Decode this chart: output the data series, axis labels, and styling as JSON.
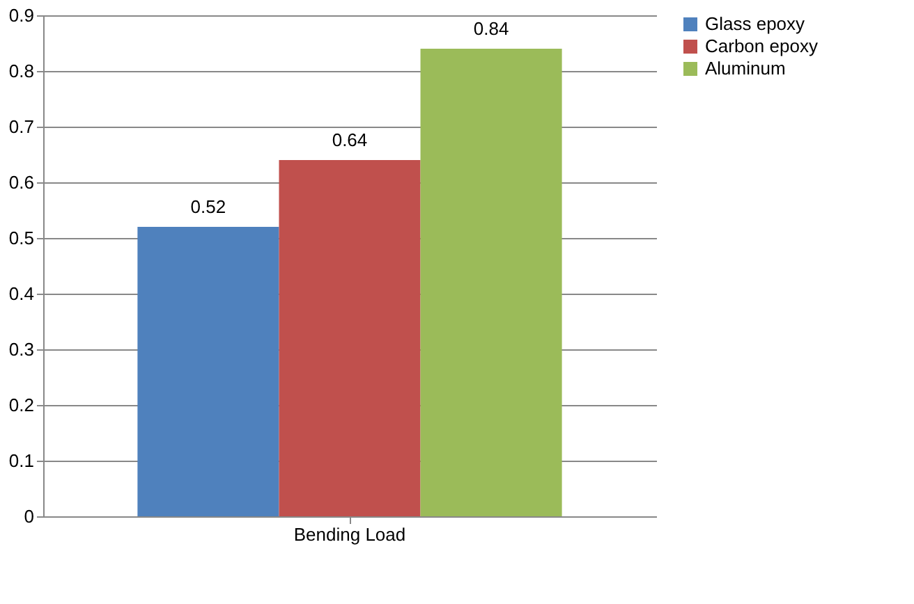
{
  "chart_data": {
    "type": "bar",
    "categories": [
      "Bending Load"
    ],
    "series": [
      {
        "name": "Glass epoxy",
        "color": "#4f81bd",
        "values": [
          0.52
        ]
      },
      {
        "name": "Carbon epoxy",
        "color": "#c0504d",
        "values": [
          0.64
        ]
      },
      {
        "name": "Aluminum",
        "color": "#9bbb59",
        "values": [
          0.84
        ]
      }
    ],
    "ylim": [
      0,
      0.9
    ],
    "yticks": [
      0,
      0.1,
      0.2,
      0.3,
      0.4,
      0.5,
      0.6,
      0.7,
      0.8,
      0.9
    ],
    "grid": "y",
    "legend": "right",
    "data_labels": true
  }
}
